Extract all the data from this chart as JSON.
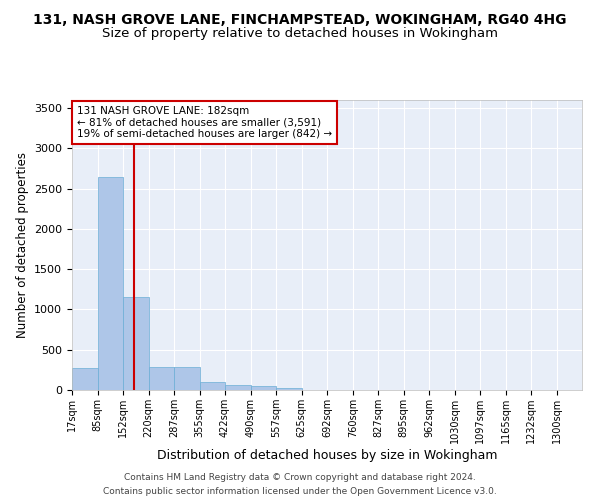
{
  "title_line1": "131, NASH GROVE LANE, FINCHAMPSTEAD, WOKINGHAM, RG40 4HG",
  "title_line2": "Size of property relative to detached houses in Wokingham",
  "xlabel": "Distribution of detached houses by size in Wokingham",
  "ylabel": "Number of detached properties",
  "annotation_line1": "131 NASH GROVE LANE: 182sqm",
  "annotation_line2": "← 81% of detached houses are smaller (3,591)",
  "annotation_line3": "19% of semi-detached houses are larger (842) →",
  "property_size": 182,
  "footer_line1": "Contains HM Land Registry data © Crown copyright and database right 2024.",
  "footer_line2": "Contains public sector information licensed under the Open Government Licence v3.0.",
  "bin_edges": [
    17,
    85,
    152,
    220,
    287,
    355,
    422,
    490,
    557,
    625,
    692,
    760,
    827,
    895,
    962,
    1030,
    1097,
    1165,
    1232,
    1300,
    1367
  ],
  "bar_values": [
    270,
    2650,
    1150,
    280,
    280,
    95,
    65,
    45,
    30,
    0,
    0,
    0,
    0,
    0,
    0,
    0,
    0,
    0,
    0,
    0
  ],
  "bar_color": "#aec6e8",
  "bar_edge_color": "#6baed6",
  "vline_color": "#cc0000",
  "vline_x": 182,
  "ylim": [
    0,
    3600
  ],
  "yticks": [
    0,
    500,
    1000,
    1500,
    2000,
    2500,
    3000,
    3500
  ],
  "bg_color": "#e8eef8",
  "grid_color": "#ffffff",
  "annotation_box_color": "#cc0000",
  "title_fontsize": 10,
  "subtitle_fontsize": 9.5
}
